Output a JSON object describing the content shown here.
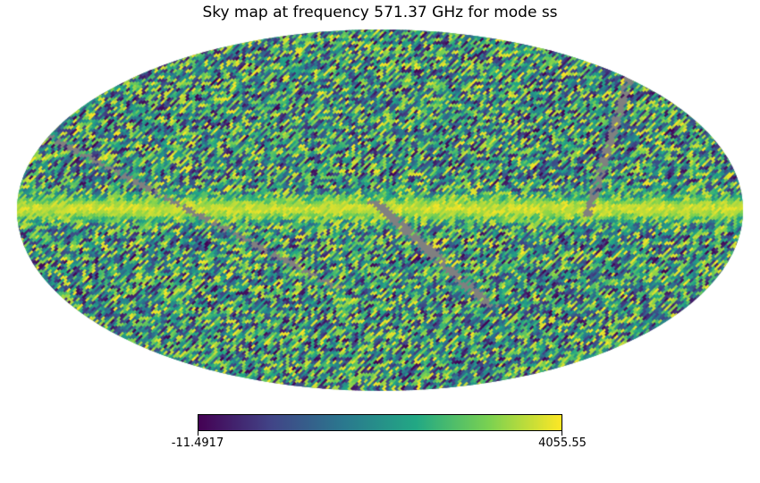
{
  "chart_data": {
    "type": "heatmap",
    "projection": "mollweide",
    "title": "Sky map at frequency 571.37 GHz for mode ss",
    "colormap": "viridis",
    "masked_color": "#808080",
    "colorbar": {
      "orientation": "horizontal",
      "min": -11.4917,
      "max": 4055.55,
      "min_label": "-11.4917",
      "max_label": "4055.55",
      "stops": [
        "#440154",
        "#414487",
        "#2a788e",
        "#22a884",
        "#7ad151",
        "#fde725"
      ]
    },
    "features": [
      "bright galactic plane band near latitude 0",
      "grey masked stripes (unobserved scan gaps) crossing the map"
    ],
    "grid": false
  }
}
